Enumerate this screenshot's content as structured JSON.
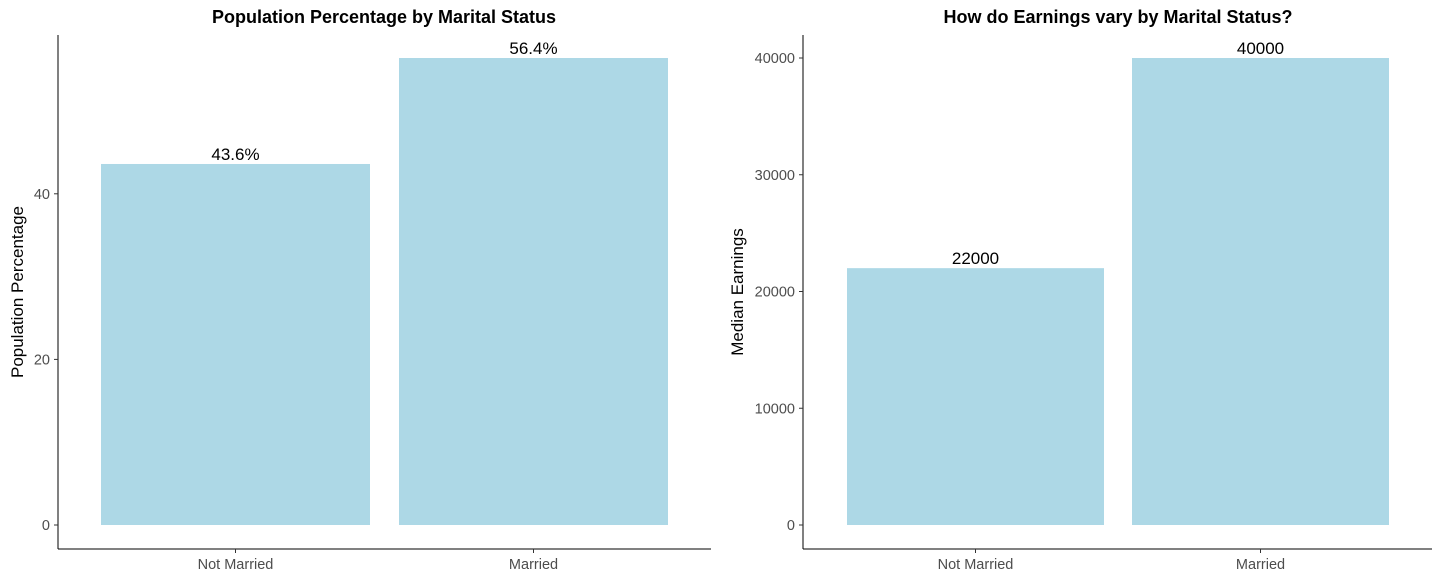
{
  "chart_data": [
    {
      "type": "bar",
      "title": "Population Percentage by Marital Status",
      "xlabel": "",
      "ylabel": "Population Percentage",
      "categories": [
        "Not Married",
        "Married"
      ],
      "values": [
        43.6,
        56.4
      ],
      "data_labels": [
        "43.6%",
        "56.4%"
      ],
      "yticks": [
        0,
        20,
        40
      ],
      "ylim": [
        0,
        56.4
      ],
      "bar_color": "#add8e6",
      "grid": false
    },
    {
      "type": "bar",
      "title": "How do Earnings vary by Marital Status?",
      "xlabel": "",
      "ylabel": "Median Earnings",
      "categories": [
        "Not Married",
        "Married"
      ],
      "values": [
        22000,
        40000
      ],
      "data_labels": [
        "22000",
        "40000"
      ],
      "yticks": [
        0,
        10000,
        20000,
        30000,
        40000
      ],
      "ylim": [
        0,
        40000
      ],
      "bar_color": "#add8e6",
      "grid": false
    }
  ]
}
